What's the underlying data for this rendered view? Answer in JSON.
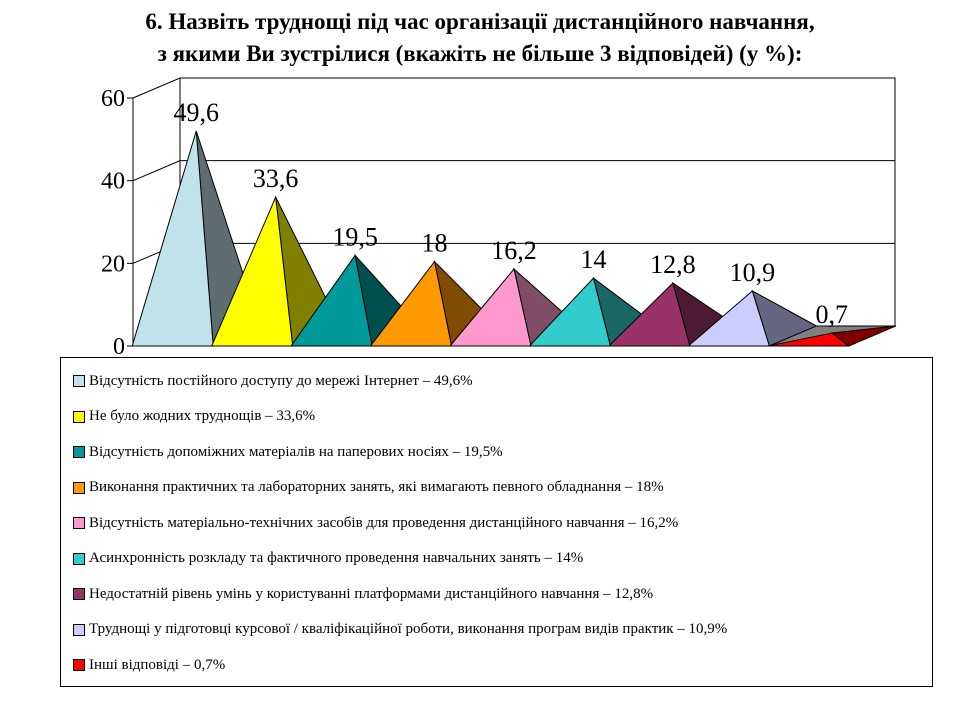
{
  "title_lines": [
    "6. Назвіть труднощі під час організації дистанційного навчання,",
    "з якими Ви зустрілися (вкажіть не більше 3 відповідей) (у %):"
  ],
  "chart_data": {
    "type": "bar",
    "style": "3d-pyramid",
    "title": "6. Назвіть труднощі під час організації дистанційного навчання, з якими Ви зустрілися (вкажіть не більше 3 відповідей) (у %):",
    "ylim": [
      0,
      60
    ],
    "y_ticks": [
      "0",
      "20",
      "40",
      "60"
    ],
    "grid": true,
    "legend_position": "bottom",
    "values": [
      49.6,
      33.6,
      19.5,
      18,
      16.2,
      14,
      12.8,
      10.9,
      0.7
    ],
    "value_labels": [
      "49,6",
      "33,6",
      "19,5",
      "18",
      "16,2",
      "14",
      "12,8",
      "10,9",
      "0,7"
    ],
    "series": [
      {
        "name": "Відсутність постійного доступу до мережі Інтернет – 49,6%",
        "color": "#BFE3E8",
        "dark": "#5E6E70"
      },
      {
        "name": "Не було жодних труднощів – 33,6%",
        "color": "#FFFF00",
        "dark": "#808000"
      },
      {
        "name": "Відсутність допоміжних матеріалів на паперових носіях  – 19,5%",
        "color": "#009999",
        "dark": "#005050"
      },
      {
        "name": "Виконання практичних та лабораторних занять, які вимагають певного обладнання – 18%",
        "color": "#FF9900",
        "dark": "#7F4C00"
      },
      {
        "name": "Відсутність матеріально-технічних засобів для проведення дистанційного навчання – 16,2%",
        "color": "#FF99CC",
        "dark": "#804D66"
      },
      {
        "name": "Асинхронність розкладу та фактичного проведення навчальних занять – 14%",
        "color": "#33CCCC",
        "dark": "#1A6666"
      },
      {
        "name": "Недостатній рівень умінь у користуванні платформами дистанційного навчання – 12,8%",
        "color": "#993366",
        "dark": "#4D1A33"
      },
      {
        "name": " Труднощі у підготовці курсової / кваліфікаційної роботи, виконання програм видів практик –  10,9%",
        "color": "#CCCCFF",
        "dark": "#666680"
      },
      {
        "name": "Інші відповіді – 0,7%",
        "color": "#FF0000",
        "dark": "#800000"
      }
    ]
  }
}
